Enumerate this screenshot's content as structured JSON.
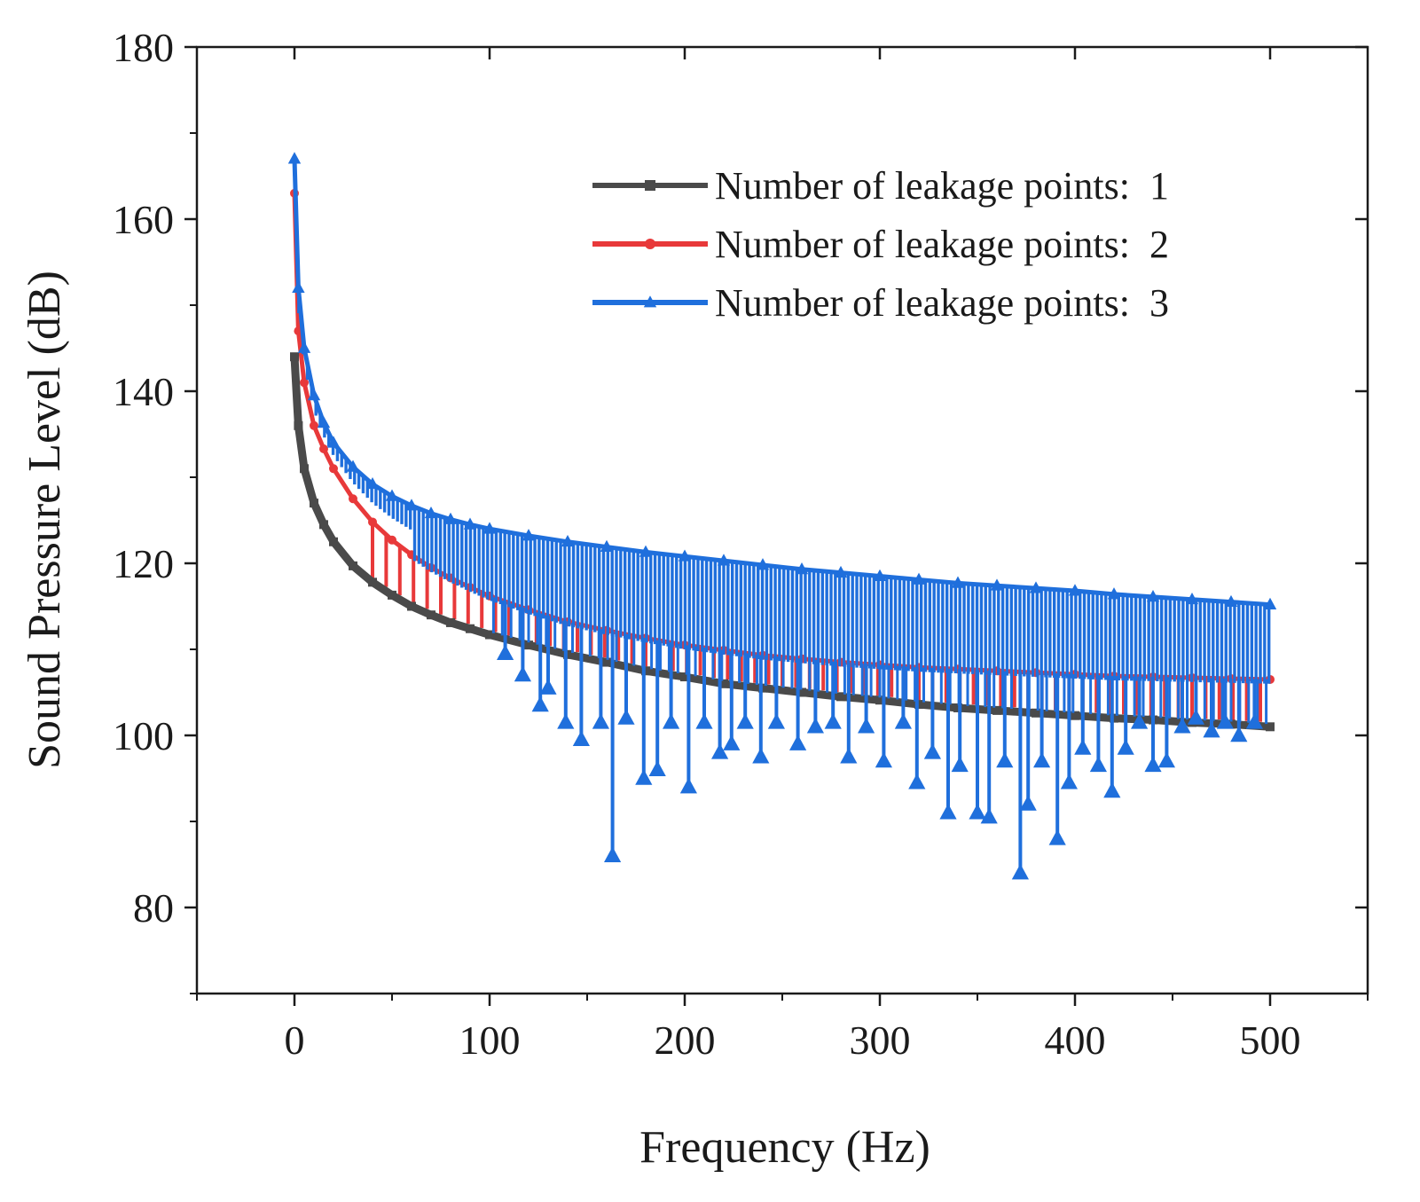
{
  "chart_data": {
    "type": "line",
    "title": "",
    "xlabel": "Frequency (Hz)",
    "ylabel": "Sound Pressure Level (dB)",
    "xlim": [
      -50,
      550
    ],
    "ylim": [
      70,
      180
    ],
    "xticks": [
      0,
      100,
      200,
      300,
      400,
      500
    ],
    "yticks": [
      80,
      100,
      120,
      140,
      160,
      180
    ],
    "xtick_labels": [
      "0",
      "100",
      "200",
      "300",
      "400",
      "500"
    ],
    "ytick_labels": [
      "80",
      "100",
      "120",
      "140",
      "160",
      "180"
    ],
    "legend_position": "top-right",
    "series": [
      {
        "name": "Number of leakage points:  1",
        "color": "#4a4a4a",
        "marker": "square",
        "x": [
          0,
          2,
          5,
          10,
          15,
          20,
          30,
          40,
          50,
          60,
          70,
          80,
          90,
          100,
          120,
          140,
          160,
          180,
          200,
          220,
          240,
          260,
          280,
          300,
          320,
          340,
          360,
          380,
          400,
          420,
          440,
          460,
          480,
          500
        ],
        "y": [
          144,
          136,
          131,
          127,
          124.5,
          122.5,
          119.7,
          117.8,
          116.3,
          115,
          114,
          113.1,
          112.4,
          111.7,
          110.5,
          109.4,
          108.5,
          107.5,
          106.8,
          106,
          105.5,
          105,
          104.5,
          104.1,
          103.6,
          103.2,
          102.9,
          102.6,
          102.3,
          102,
          101.8,
          101.5,
          101.3,
          101
        ]
      },
      {
        "name": "Number of leakage points:  2",
        "color": "#e8393a",
        "marker": "circle",
        "x": [
          0,
          2,
          5,
          10,
          15,
          20,
          30,
          40,
          50,
          60,
          70,
          80,
          90,
          100,
          120,
          140,
          160,
          180,
          200,
          220,
          240,
          260,
          280,
          300,
          320,
          340,
          360,
          380,
          400,
          420,
          440,
          460,
          480,
          500
        ],
        "y": [
          163,
          147,
          141,
          136,
          133.3,
          131,
          127.5,
          124.8,
          122.7,
          121,
          119.5,
          118.3,
          117.2,
          116.2,
          114.6,
          113.2,
          112.2,
          111.3,
          110.5,
          109.9,
          109.3,
          108.9,
          108.5,
          108.2,
          107.9,
          107.7,
          107.5,
          107.3,
          107.1,
          106.9,
          106.8,
          106.7,
          106.6,
          106.5
        ]
      },
      {
        "name": "Number of leakage points:  3",
        "color": "#1f6fdc",
        "marker": "triangle",
        "x": [
          0,
          2,
          5,
          10,
          15,
          20,
          30,
          40,
          50,
          60,
          70,
          80,
          90,
          100,
          120,
          140,
          160,
          180,
          200,
          220,
          240,
          260,
          280,
          300,
          320,
          340,
          360,
          380,
          400,
          420,
          440,
          460,
          480,
          500
        ],
        "y": [
          167,
          152,
          145,
          139.5,
          136.3,
          134,
          131.2,
          129.2,
          127.8,
          126.7,
          125.8,
          125.1,
          124.5,
          124,
          123.2,
          122.5,
          121.9,
          121.3,
          120.8,
          120.3,
          119.8,
          119.3,
          118.9,
          118.5,
          118.1,
          117.7,
          117.4,
          117.1,
          116.8,
          116.4,
          116.1,
          115.8,
          115.5,
          115.2
        ],
        "dips": [
          {
            "x": 108,
            "y": 109.5
          },
          {
            "x": 117,
            "y": 107
          },
          {
            "x": 126,
            "y": 103.5
          },
          {
            "x": 130,
            "y": 105.5
          },
          {
            "x": 139,
            "y": 101.5
          },
          {
            "x": 147,
            "y": 99.5
          },
          {
            "x": 157,
            "y": 101.5
          },
          {
            "x": 163,
            "y": 86
          },
          {
            "x": 170,
            "y": 102
          },
          {
            "x": 179,
            "y": 95
          },
          {
            "x": 186,
            "y": 96
          },
          {
            "x": 193,
            "y": 101.5
          },
          {
            "x": 202,
            "y": 94
          },
          {
            "x": 210,
            "y": 101.5
          },
          {
            "x": 218,
            "y": 98
          },
          {
            "x": 224,
            "y": 99
          },
          {
            "x": 231,
            "y": 101.5
          },
          {
            "x": 239,
            "y": 97.5
          },
          {
            "x": 247,
            "y": 101.5
          },
          {
            "x": 258,
            "y": 99
          },
          {
            "x": 267,
            "y": 101
          },
          {
            "x": 276,
            "y": 101.5
          },
          {
            "x": 284,
            "y": 97.5
          },
          {
            "x": 293,
            "y": 101
          },
          {
            "x": 302,
            "y": 97
          },
          {
            "x": 312,
            "y": 101.5
          },
          {
            "x": 319,
            "y": 94.5
          },
          {
            "x": 327,
            "y": 98
          },
          {
            "x": 335,
            "y": 91
          },
          {
            "x": 341,
            "y": 96.5
          },
          {
            "x": 350,
            "y": 91
          },
          {
            "x": 356,
            "y": 90.5
          },
          {
            "x": 364,
            "y": 97
          },
          {
            "x": 372,
            "y": 84
          },
          {
            "x": 376,
            "y": 92
          },
          {
            "x": 383,
            "y": 97
          },
          {
            "x": 391,
            "y": 88
          },
          {
            "x": 397,
            "y": 94.5
          },
          {
            "x": 404,
            "y": 98.5
          },
          {
            "x": 412,
            "y": 96.5
          },
          {
            "x": 419,
            "y": 93.5
          },
          {
            "x": 426,
            "y": 98.5
          },
          {
            "x": 433,
            "y": 101.5
          },
          {
            "x": 440,
            "y": 96.5
          },
          {
            "x": 447,
            "y": 97
          },
          {
            "x": 455,
            "y": 101
          },
          {
            "x": 462,
            "y": 102
          },
          {
            "x": 470,
            "y": 100.5
          },
          {
            "x": 477,
            "y": 101.5
          },
          {
            "x": 484,
            "y": 100
          },
          {
            "x": 492,
            "y": 101.5
          }
        ]
      }
    ]
  }
}
